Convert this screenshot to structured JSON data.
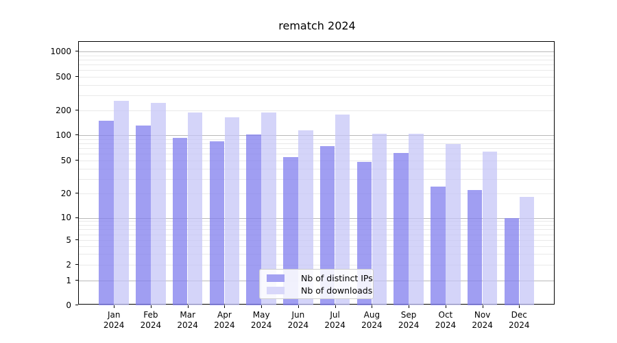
{
  "chart_data": {
    "type": "bar",
    "title": "rematch 2024",
    "categories": [
      "Jan",
      "Feb",
      "Mar",
      "Apr",
      "May",
      "Jun",
      "Jul",
      "Aug",
      "Sep",
      "Oct",
      "Nov",
      "Dec"
    ],
    "category_year": "2024",
    "series": [
      {
        "name": "Nb of distinct IPs",
        "values": [
          150,
          131,
          93,
          84,
          102,
          55,
          74,
          48,
          61,
          24,
          22,
          10
        ],
        "fill_rgba": "rgba(128,126,238,0.75)",
        "swatch_color": "#a3a1f2"
      },
      {
        "name": "Nb of downloads",
        "values": [
          260,
          246,
          190,
          165,
          190,
          114,
          178,
          105,
          105,
          78,
          64,
          18
        ],
        "fill_rgba": "rgba(196,195,246,0.72)",
        "swatch_color": "#d8d7fa"
      }
    ],
    "y_axis": {
      "scale": "symlog",
      "ticks": [
        0,
        1,
        2,
        5,
        10,
        20,
        50,
        100,
        200,
        500,
        1000
      ],
      "major_gridlines": [
        1,
        10,
        100,
        1000
      ]
    },
    "x_axis": {
      "tick_label_format": "month + year, two lines"
    },
    "legend": {
      "position": "lower center",
      "entries": [
        "Nb of distinct IPs",
        "Nb of downloads"
      ]
    },
    "grid": "on",
    "ylim": [
      0,
      2000
    ]
  }
}
